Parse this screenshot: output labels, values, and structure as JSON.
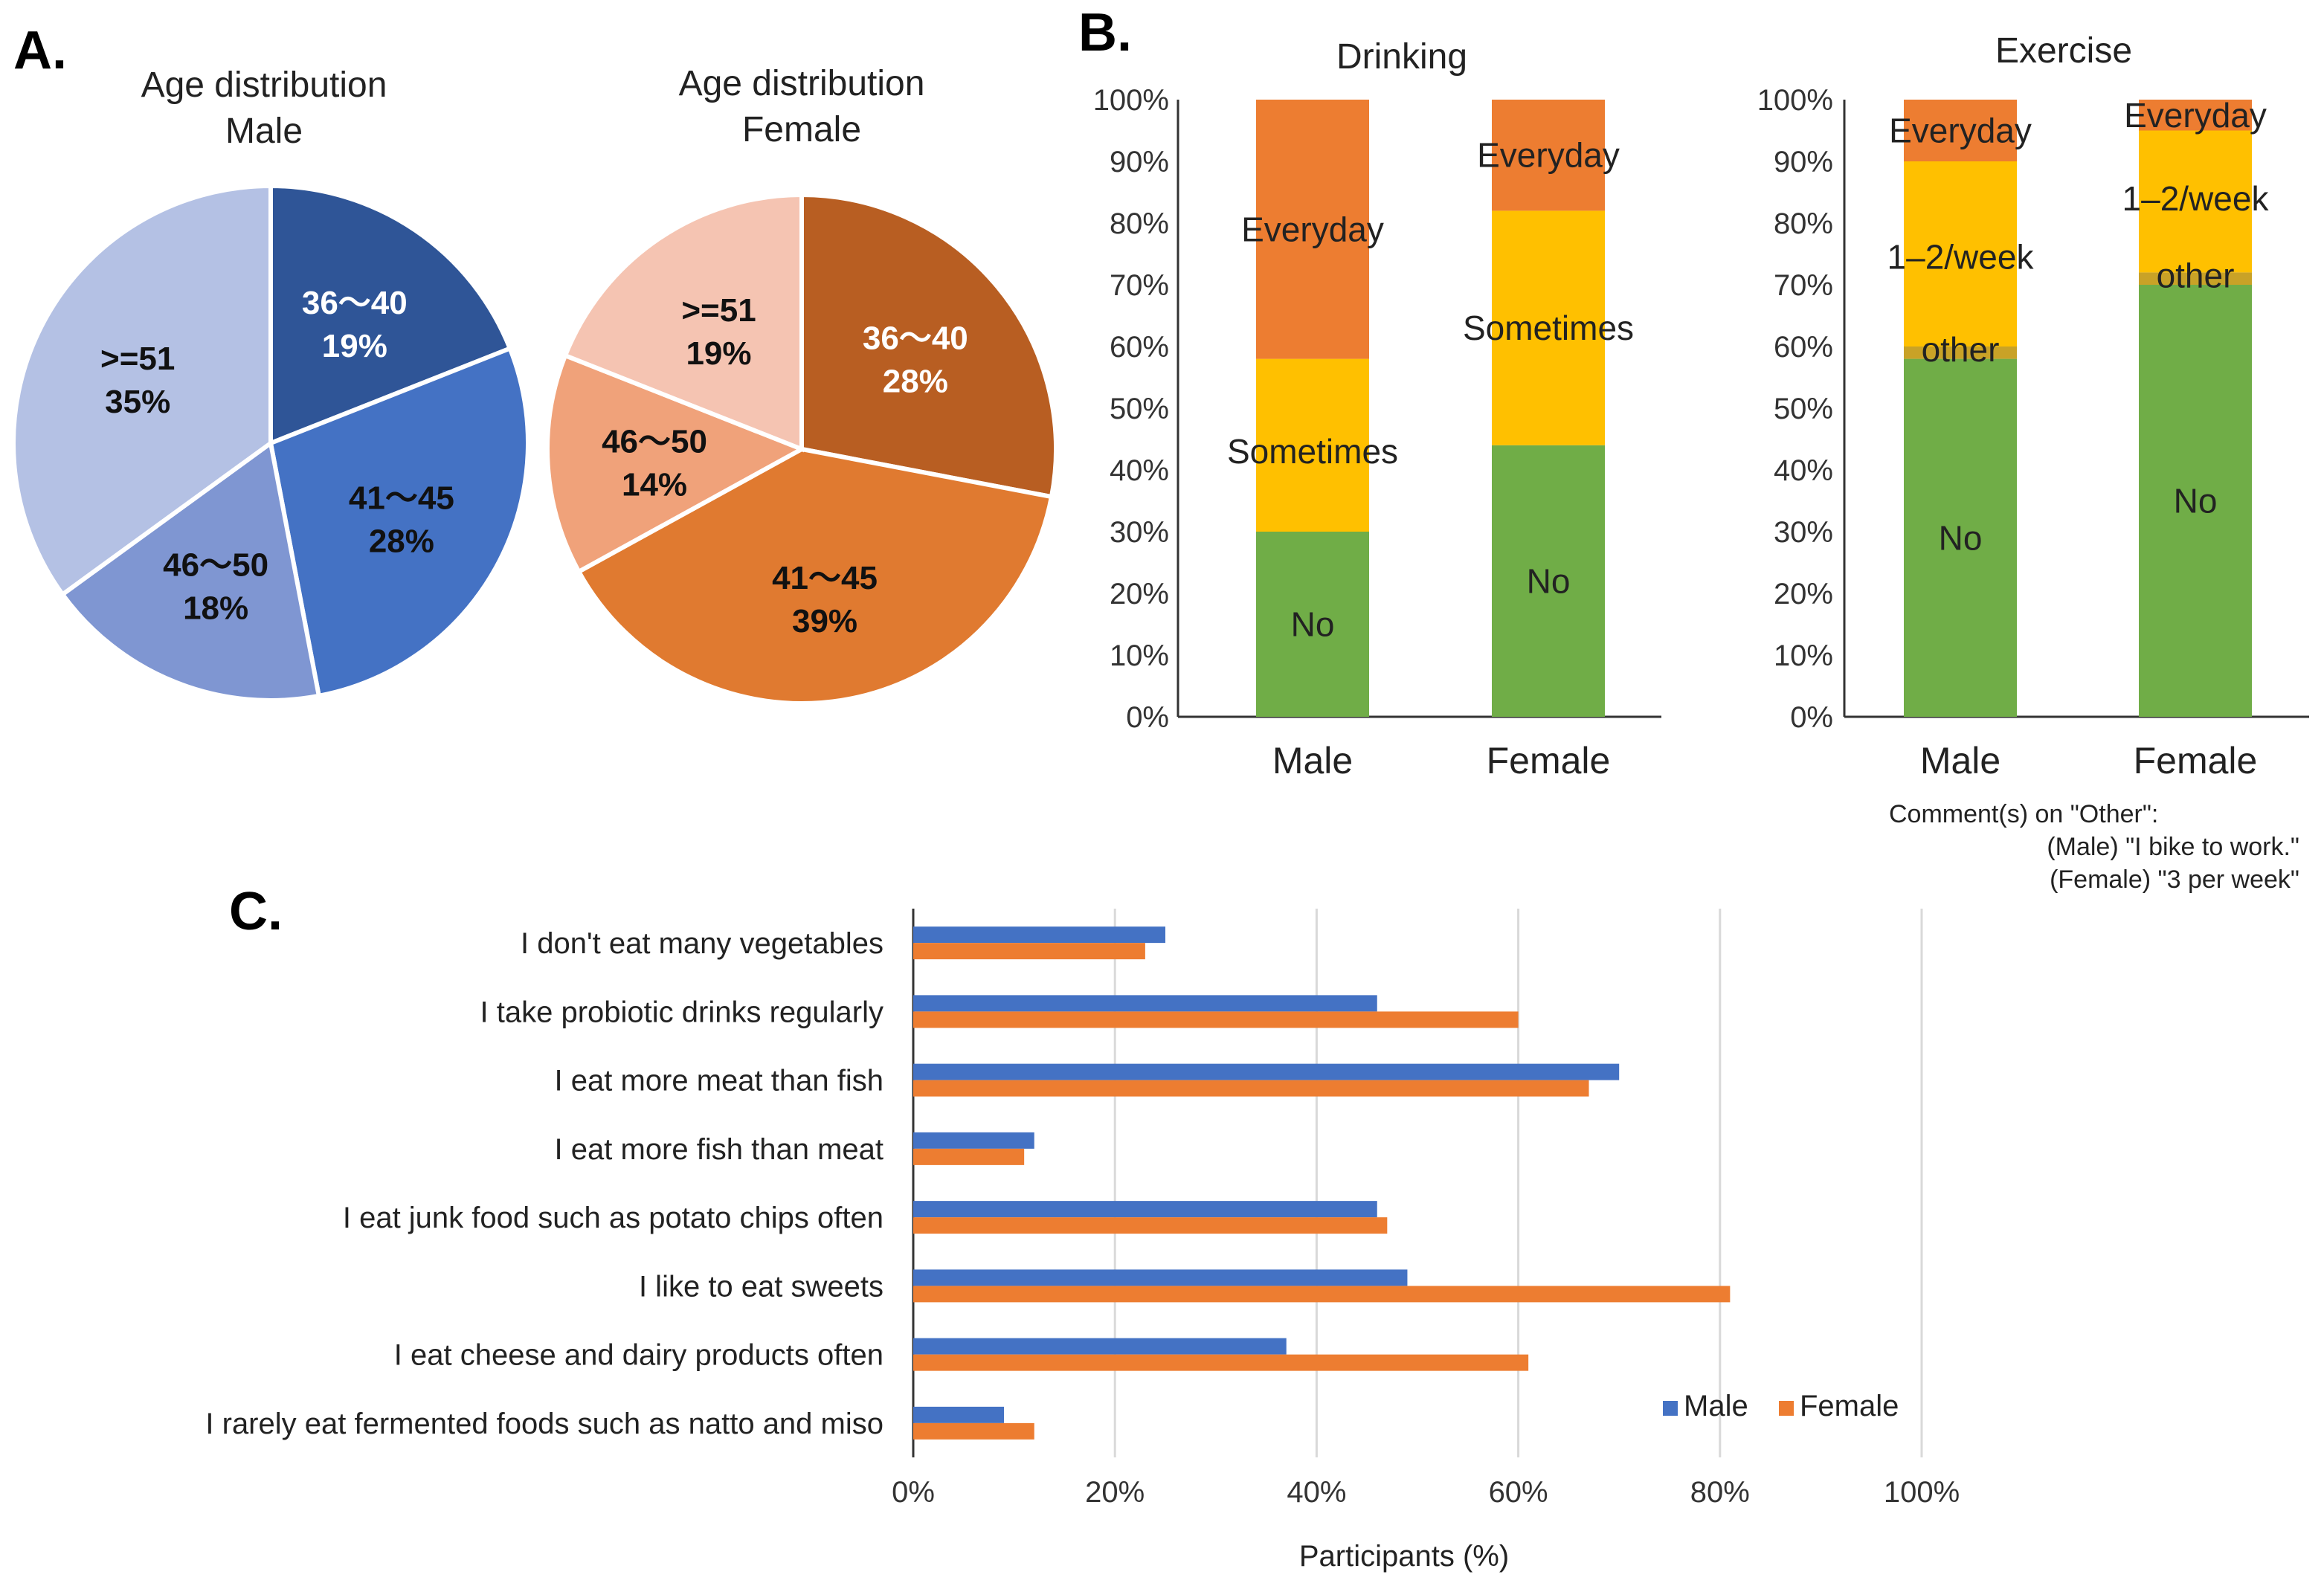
{
  "panel_labels": {
    "a": "A.",
    "b": "B.",
    "c": "C."
  },
  "chart_data": [
    {
      "id": "pie-male",
      "type": "pie",
      "title_line1": "Age distribution",
      "title_line2": "Male",
      "slices": [
        {
          "label": "36～40",
          "pct_label": "19%",
          "value": 19,
          "color": "#2F5597",
          "text_color": "#ffffff"
        },
        {
          "label": "41～45",
          "pct_label": "28%",
          "value": 28,
          "color": "#4472C4",
          "text_color": "#111111"
        },
        {
          "label": "46～50",
          "pct_label": "18%",
          "value": 18,
          "color": "#7F96D2",
          "text_color": "#111111"
        },
        {
          "label": ">=51",
          "pct_label": "35%",
          "value": 35,
          "color": "#B4C1E4",
          "text_color": "#111111"
        }
      ]
    },
    {
      "id": "pie-female",
      "type": "pie",
      "title_line1": "Age distribution",
      "title_line2": "Female",
      "slices": [
        {
          "label": "36～40",
          "pct_label": "28%",
          "value": 28,
          "color": "#B85E22",
          "text_color": "#ffffff"
        },
        {
          "label": "41～45",
          "pct_label": "39%",
          "value": 39,
          "color": "#E07A30",
          "text_color": "#111111"
        },
        {
          "label": "46～50",
          "pct_label": "14%",
          "value": 14,
          "color": "#F0A27A",
          "text_color": "#111111"
        },
        {
          "label": ">=51",
          "pct_label": "19%",
          "value": 19,
          "color": "#F5C4B2",
          "text_color": "#111111"
        }
      ]
    },
    {
      "id": "drinking",
      "type": "bar",
      "stacked": true,
      "title": "Drinking",
      "categories": [
        "Male",
        "Female"
      ],
      "y_ticks": [
        "0%",
        "10%",
        "20%",
        "30%",
        "40%",
        "50%",
        "60%",
        "70%",
        "80%",
        "90%",
        "100%"
      ],
      "ylim": [
        0,
        100
      ],
      "series": [
        {
          "name": "No",
          "values": [
            30,
            44
          ],
          "color": "#70AD47"
        },
        {
          "name": "Sometimes",
          "values": [
            28,
            38
          ],
          "color": "#FFC000"
        },
        {
          "name": "Everyday",
          "values": [
            42,
            18
          ],
          "color": "#ED7D31"
        }
      ]
    },
    {
      "id": "exercise",
      "type": "bar",
      "stacked": true,
      "title": "Exercise",
      "categories": [
        "Male",
        "Female"
      ],
      "y_ticks": [
        "0%",
        "10%",
        "20%",
        "30%",
        "40%",
        "50%",
        "60%",
        "70%",
        "80%",
        "90%",
        "100%"
      ],
      "ylim": [
        0,
        100
      ],
      "series": [
        {
          "name": "No",
          "values": [
            58,
            70
          ],
          "color": "#70AD47"
        },
        {
          "name": "other",
          "values": [
            2,
            2
          ],
          "color": "#C9A227"
        },
        {
          "name": "1–2/week",
          "values": [
            30,
            23
          ],
          "color": "#FFC000"
        },
        {
          "name": "Everyday",
          "values": [
            10,
            5
          ],
          "color": "#ED7D31"
        }
      ],
      "comment_lines": [
        "Comment(s) on \"Other\":",
        "(Male) \"I bike to work.\"",
        "(Female) \"3 per week\""
      ]
    },
    {
      "id": "food-habits",
      "type": "bar",
      "orientation": "horizontal",
      "categories": [
        "I don't eat many vegetables",
        "I take probiotic drinks regularly",
        "I eat more meat than fish",
        "I eat more fish than meat",
        "I eat junk food such as potato chips often",
        "I like to eat sweets",
        "I eat cheese and dairy products often",
        "I rarely eat fermented foods such as natto and miso"
      ],
      "series": [
        {
          "name": "Male",
          "values": [
            25,
            46,
            70,
            12,
            46,
            49,
            37,
            9
          ],
          "color": "#4472C4"
        },
        {
          "name": "Female",
          "values": [
            23,
            60,
            67,
            11,
            47,
            81,
            61,
            12
          ],
          "color": "#ED7D31"
        }
      ],
      "x_ticks": [
        "0%",
        "20%",
        "40%",
        "60%",
        "80%",
        "100%"
      ],
      "xlim": [
        0,
        100
      ],
      "xlabel": "Participants (%)",
      "legend": "bottom-right"
    }
  ]
}
